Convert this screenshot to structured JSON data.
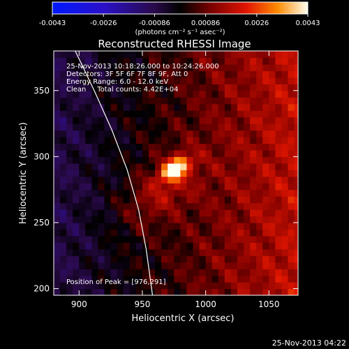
{
  "colorbar": {
    "ticks": [
      "-0.0043",
      "-0.0026",
      "-0.00086",
      "0.00086",
      "0.0026",
      "0.0043"
    ],
    "units_line": "(photons cm⁻² s⁻¹ asec⁻²)"
  },
  "chart_data": {
    "type": "heatmap",
    "title": "Reconstructed RHESSI Image",
    "xlabel": "Heliocentric X (arcsec)",
    "ylabel": "Heliocentric Y (arcsec)",
    "xlim": [
      880,
      1073
    ],
    "ylim": [
      195,
      380
    ],
    "xticks": [
      900,
      950,
      1000,
      1050
    ],
    "yticks": [
      200,
      250,
      300,
      350
    ],
    "annotations": [
      "25-Nov-2013 10:18:26.000 to 10:24:26.000",
      "Detectors: 3F 5F 6F 7F 8F 9F, Att 0",
      "Energy Range: 6.0 - 12.0 keV",
      "Clean     Total counts: 4.42E+04"
    ],
    "peak_text": "Position of Peak = [976,291]",
    "peak": {
      "x": 976,
      "y": 291,
      "value": 0.0043
    },
    "value_range": [
      -0.0043,
      0.0043
    ],
    "sources": [
      {
        "x": 976,
        "y": 291,
        "amplitude": 0.0043,
        "sigma_major": 8,
        "sigma_minor": 4.5,
        "angle_deg": 35
      },
      {
        "x": 965,
        "y": 275,
        "amplitude": 0.0012,
        "sigma_major": 25,
        "sigma_minor": 14,
        "angle_deg": 40
      }
    ],
    "limb_curve": [
      [
        896,
        382
      ],
      [
        912,
        350
      ],
      [
        926,
        320
      ],
      [
        938,
        290
      ],
      [
        947,
        260
      ],
      [
        953,
        230
      ],
      [
        958,
        195
      ]
    ],
    "footer_date": "25-Nov-2013 04:22"
  }
}
